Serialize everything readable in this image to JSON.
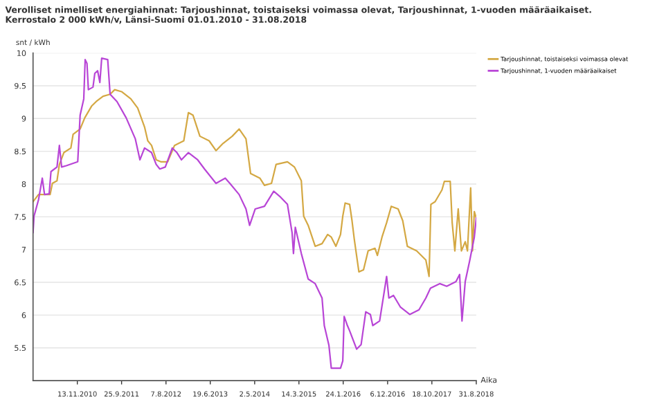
{
  "chart_data": {
    "type": "line",
    "title": "Verolliset nimelliset energiahinnat: Tarjoushinnat, toistaiseksi voimassa olevat, Tarjoushinnat, 1-vuoden määräaikaiset.\nKerrostalo 2 000 kWh/v, Länsi-Suomi 01.01.2010 - 31.08.2018",
    "ylabel": "snt / kWh",
    "xlabel": "Aika",
    "xlim": [
      "2010-01-01",
      "2018-08-31"
    ],
    "xticks": [
      {
        "value": "2010-11-13",
        "label": "13.11.2010"
      },
      {
        "value": "2011-09-25",
        "label": "25.9.2011"
      },
      {
        "value": "2012-08-07",
        "label": "7.8.2012"
      },
      {
        "value": "2013-06-19",
        "label": "19.6.2013"
      },
      {
        "value": "2014-05-02",
        "label": "2.5.2014"
      },
      {
        "value": "2015-03-14",
        "label": "14.3.2015"
      },
      {
        "value": "2016-01-24",
        "label": "24.1.2016"
      },
      {
        "value": "2016-12-06",
        "label": "6.12.2016"
      },
      {
        "value": "2017-10-18",
        "label": "18.10.2017"
      },
      {
        "value": "2018-08-31",
        "label": "31.8.2018"
      }
    ],
    "ylim": [
      5,
      10
    ],
    "yticks": [
      5.5,
      6,
      6.5,
      7,
      7.5,
      8,
      8.5,
      9,
      9.5,
      10
    ],
    "grid": "y",
    "legend": "top right",
    "marker": "none",
    "line_style": "solid",
    "series": [
      {
        "name": "Tarjoushinnat, toistaiseksi voimassa olevat",
        "color": "#d4a843",
        "x": [
          "2010-01-01",
          "2010-02-09",
          "2010-05-03",
          "2010-05-19",
          "2010-06-21",
          "2010-07-08",
          "2010-08-09",
          "2010-09-28",
          "2010-10-14",
          "2010-12-03",
          "2011-01-05",
          "2011-02-23",
          "2011-03-28",
          "2011-05-16",
          "2011-07-05",
          "2011-08-07",
          "2011-09-25",
          "2011-11-30",
          "2012-01-18",
          "2012-03-07",
          "2012-03-30",
          "2012-04-26",
          "2012-05-29",
          "2012-07-01",
          "2012-08-19",
          "2012-10-07",
          "2012-12-12",
          "2013-01-14",
          "2013-02-16",
          "2013-04-06",
          "2013-06-11",
          "2013-07-30",
          "2013-09-18",
          "2013-11-23",
          "2014-01-11",
          "2014-03-01",
          "2014-04-03",
          "2014-06-08",
          "2014-07-11",
          "2014-08-30",
          "2014-10-02",
          "2014-12-22",
          "2015-02-10",
          "2015-03-31",
          "2015-04-17",
          "2015-05-19",
          "2015-07-08",
          "2015-08-26",
          "2015-10-05",
          "2015-10-31",
          "2015-12-03",
          "2016-01-05",
          "2016-01-21",
          "2016-02-07",
          "2016-03-10",
          "2016-03-27",
          "2016-04-12",
          "2016-05-15",
          "2016-06-17",
          "2016-07-20",
          "2016-09-07",
          "2016-09-24",
          "2016-10-27",
          "2016-11-29",
          "2017-01-01",
          "2017-02-19",
          "2017-03-24",
          "2017-04-26",
          "2017-07-01",
          "2017-09-05",
          "2017-09-28",
          "2017-10-11",
          "2017-11-10",
          "2017-12-29",
          "2018-01-15",
          "2018-02-26",
          "2018-03-12",
          "2018-03-31",
          "2018-04-24",
          "2018-05-17",
          "2018-06-13",
          "2018-06-29",
          "2018-07-22",
          "2018-08-04",
          "2018-08-17",
          "2018-08-31"
        ],
        "values": [
          7.73,
          7.84,
          7.84,
          8.01,
          8.05,
          8.3,
          8.48,
          8.55,
          8.76,
          8.84,
          9.01,
          9.19,
          9.26,
          9.34,
          9.37,
          9.44,
          9.41,
          9.3,
          9.16,
          8.87,
          8.66,
          8.59,
          8.37,
          8.34,
          8.34,
          8.59,
          8.66,
          9.09,
          9.05,
          8.73,
          8.66,
          8.51,
          8.62,
          8.73,
          8.84,
          8.69,
          8.16,
          8.09,
          7.98,
          8.01,
          8.3,
          8.34,
          8.26,
          8.05,
          7.51,
          7.37,
          7.05,
          7.09,
          7.23,
          7.19,
          7.05,
          7.23,
          7.51,
          7.71,
          7.69,
          7.44,
          7.16,
          6.66,
          6.69,
          6.98,
          7.02,
          6.91,
          7.19,
          7.41,
          7.66,
          7.62,
          7.44,
          7.05,
          6.98,
          6.84,
          6.59,
          7.69,
          7.73,
          7.91,
          8.04,
          8.04,
          7.41,
          6.98,
          7.62,
          6.98,
          7.12,
          6.98,
          7.94,
          6.98,
          7.58,
          7.48
        ]
      },
      {
        "name": "Tarjoushinnat, 1-vuoden määräaikaiset",
        "color": "#b845d6",
        "x": [
          "2010-01-01",
          "2010-01-08",
          "2010-02-09",
          "2010-03-08",
          "2010-03-24",
          "2010-04-26",
          "2010-05-09",
          "2010-06-21",
          "2010-07-08",
          "2010-07-24",
          "2010-08-26",
          "2010-11-16",
          "2010-12-03",
          "2010-12-29",
          "2011-01-08",
          "2011-01-21",
          "2011-01-31",
          "2011-03-05",
          "2011-03-18",
          "2011-04-07",
          "2011-04-23",
          "2011-05-06",
          "2011-06-18",
          "2011-07-05",
          "2011-08-23",
          "2011-10-28",
          "2012-01-01",
          "2012-02-03",
          "2012-03-07",
          "2012-04-26",
          "2012-05-29",
          "2012-06-24",
          "2012-08-02",
          "2012-09-21",
          "2012-10-24",
          "2012-11-25",
          "2013-01-14",
          "2013-03-21",
          "2013-05-09",
          "2013-07-30",
          "2013-10-04",
          "2013-11-06",
          "2014-01-11",
          "2014-03-01",
          "2014-03-27",
          "2014-05-06",
          "2014-07-11",
          "2014-09-15",
          "2014-11-03",
          "2014-12-22",
          "2015-01-24",
          "2015-02-03",
          "2015-02-16",
          "2015-03-31",
          "2015-05-19",
          "2015-07-08",
          "2015-08-26",
          "2015-09-11",
          "2015-10-14",
          "2015-10-31",
          "2016-01-05",
          "2016-01-21",
          "2016-01-31",
          "2016-02-23",
          "2016-03-10",
          "2016-04-29",
          "2016-05-31",
          "2016-07-03",
          "2016-08-05",
          "2016-08-22",
          "2016-10-10",
          "2016-11-29",
          "2016-12-15",
          "2017-01-17",
          "2017-03-08",
          "2017-05-13",
          "2017-07-18",
          "2017-09-05",
          "2017-10-08",
          "2017-12-13",
          "2018-02-01",
          "2018-04-08",
          "2018-05-04",
          "2018-05-21",
          "2018-06-13",
          "2018-07-16",
          "2018-08-17",
          "2018-08-31"
        ],
        "values": [
          7.26,
          7.51,
          7.76,
          8.09,
          7.84,
          7.85,
          8.19,
          8.26,
          8.59,
          8.26,
          8.28,
          8.34,
          9.05,
          9.3,
          9.9,
          9.84,
          9.44,
          9.48,
          9.69,
          9.73,
          9.55,
          9.92,
          9.9,
          9.37,
          9.26,
          9.01,
          8.69,
          8.37,
          8.55,
          8.48,
          8.3,
          8.23,
          8.26,
          8.55,
          8.48,
          8.37,
          8.48,
          8.37,
          8.23,
          8.01,
          8.09,
          8.01,
          7.84,
          7.62,
          7.37,
          7.62,
          7.66,
          7.89,
          7.8,
          7.69,
          7.26,
          6.94,
          7.34,
          6.94,
          6.55,
          6.48,
          6.26,
          5.84,
          5.54,
          5.19,
          5.19,
          5.3,
          5.98,
          5.84,
          5.76,
          5.48,
          5.55,
          6.05,
          6.01,
          5.84,
          5.91,
          6.59,
          6.26,
          6.3,
          6.12,
          6.01,
          6.08,
          6.26,
          6.41,
          6.48,
          6.44,
          6.51,
          6.62,
          5.91,
          6.51,
          6.84,
          7.19,
          7.48
        ]
      }
    ]
  }
}
